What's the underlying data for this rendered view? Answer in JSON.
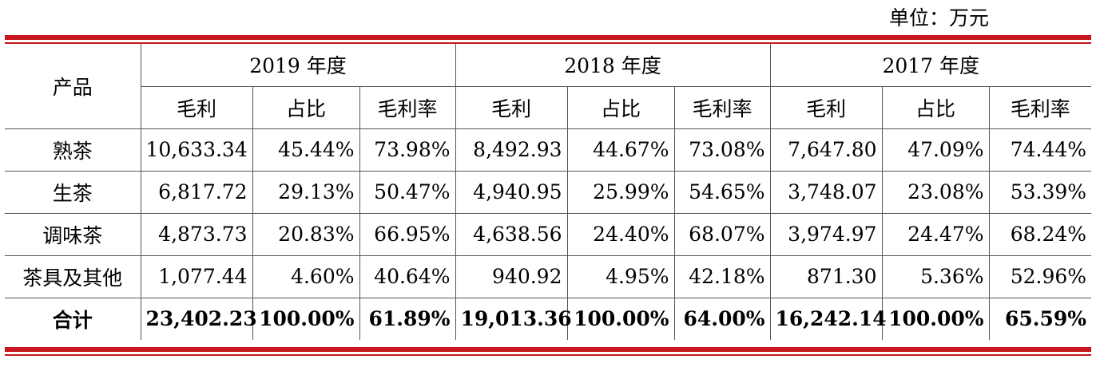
{
  "unit_label": "单位：万元",
  "header": {
    "product": "产品",
    "years": [
      "2019 年度",
      "2018 年度",
      "2017 年度"
    ],
    "sub_columns": [
      "毛利",
      "占比",
      "毛利率"
    ]
  },
  "rows": [
    {
      "product": "熟茶",
      "values": [
        "10,633.34",
        "45.44%",
        "73.98%",
        "8,492.93",
        "44.67%",
        "73.08%",
        "7,647.80",
        "47.09%",
        "74.44%"
      ]
    },
    {
      "product": "生茶",
      "values": [
        "6,817.72",
        "29.13%",
        "50.47%",
        "4,940.95",
        "25.99%",
        "54.65%",
        "3,748.07",
        "23.08%",
        "53.39%"
      ]
    },
    {
      "product": "调味茶",
      "values": [
        "4,873.73",
        "20.83%",
        "66.95%",
        "4,638.56",
        "24.40%",
        "68.07%",
        "3,974.97",
        "24.47%",
        "68.24%"
      ]
    },
    {
      "product": "茶具及其他",
      "values": [
        "1,077.44",
        "4.60%",
        "40.64%",
        "940.92",
        "4.95%",
        "42.18%",
        "871.30",
        "5.36%",
        "52.96%"
      ]
    }
  ],
  "total": {
    "product": "合计",
    "values": [
      "23,402.23",
      "100.00%",
      "61.89%",
      "19,013.36",
      "100.00%",
      "64.00%",
      "16,242.14",
      "100.00%",
      "65.59%"
    ]
  },
  "colors": {
    "rule": "#c8171e"
  }
}
